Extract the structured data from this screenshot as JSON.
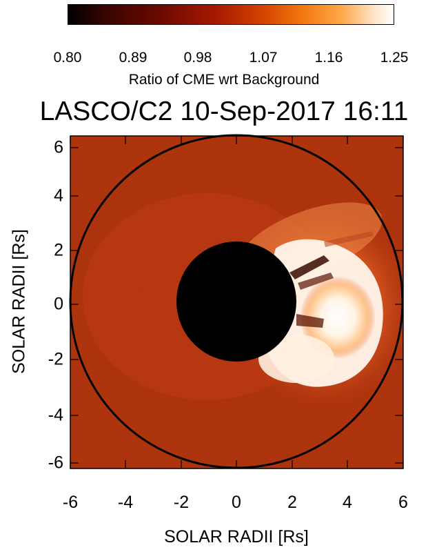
{
  "colorbar": {
    "ticks": [
      "0.80",
      "0.89",
      "0.98",
      "1.07",
      "1.16",
      "1.25"
    ],
    "label": "Ratio of CME wrt Background",
    "colors": [
      "#000000",
      "#5a0000",
      "#a81500",
      "#e05500",
      "#ff9a30",
      "#ffffff"
    ]
  },
  "title": "LASCO/C2 10-Sep-2017 16:11",
  "axes": {
    "xlabel": "SOLAR RADII [Rs]",
    "ylabel": "SOLAR RADII [Rs]",
    "xticks": [
      "-6",
      "-4",
      "-2",
      "0",
      "2",
      "4",
      "6"
    ],
    "yticks": [
      "6",
      "4",
      "2",
      "0",
      "-2",
      "-4",
      "-6"
    ]
  },
  "image": {
    "background_color": "#b63210",
    "occulter_color": "#000000",
    "field_of_view_circle_color": "#000000"
  }
}
